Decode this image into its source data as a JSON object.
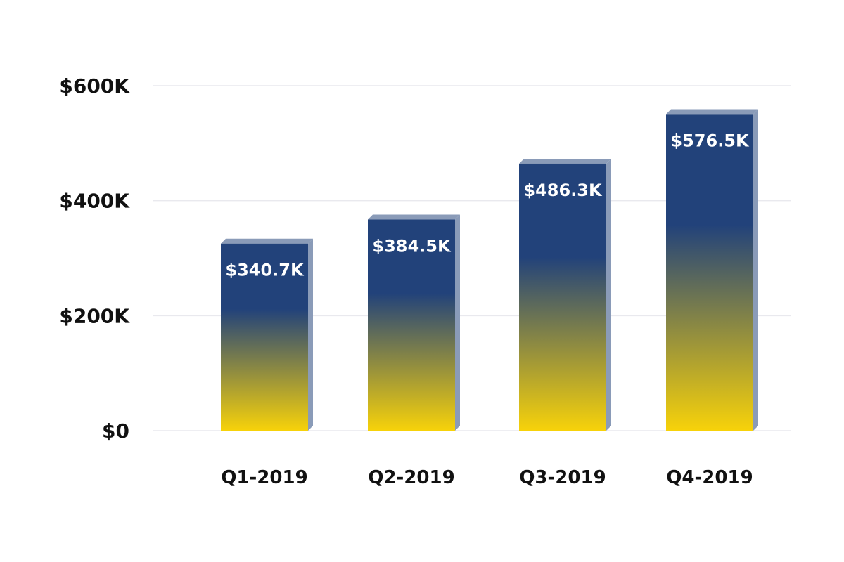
{
  "chart_data": {
    "type": "bar",
    "title": "",
    "xlabel": "",
    "ylabel": "",
    "categories": [
      "Q1-2019",
      "Q2-2019",
      "Q3-2019",
      "Q4-2019"
    ],
    "values": [
      340.7,
      384.5,
      486.3,
      576.5
    ],
    "value_unit": "thousand USD",
    "data_labels": [
      "$340.7K",
      "$384.5K",
      "$486.3K",
      "$576.5K"
    ],
    "ylim": [
      0,
      600
    ],
    "yticks": [
      0,
      200,
      400,
      600
    ],
    "ytick_labels": [
      "$0",
      "$200K",
      "$400K",
      "$600K"
    ],
    "grid": true,
    "legend": "none",
    "colors": {
      "bar_top": "#22427a",
      "bar_bottom": "#f7d20a",
      "bar_side": "#8a9bb8",
      "label": "#ffffff",
      "grid": "#e9e9ee",
      "text": "#111111"
    }
  }
}
